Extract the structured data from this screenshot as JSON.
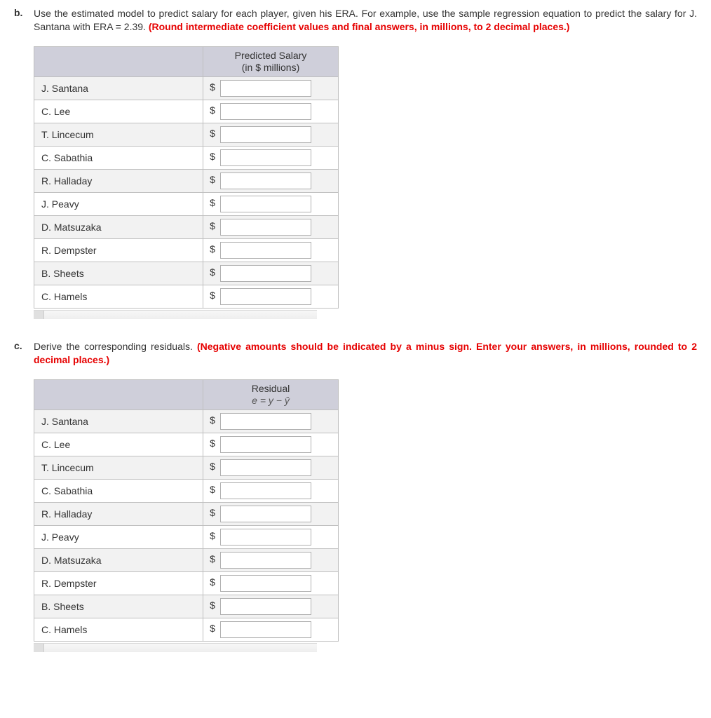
{
  "sections": {
    "b": {
      "letter": "b.",
      "text_plain": "Use the estimated model to predict salary for each player, given his ERA. For example, use the sample regression equation to predict the salary for J. Santana with ERA = 2.39. ",
      "text_red": "(Round intermediate coefficient values and final answers, in millions, to 2 decimal places.)",
      "header_line1": "Predicted Salary",
      "header_line2": "(in $ millions)"
    },
    "c": {
      "letter": "c.",
      "text_plain": "Derive the corresponding residuals. ",
      "text_red": "(Negative amounts should be indicated by a minus sign. Enter your answers, in millions, rounded to 2 decimal places.)",
      "header_line1": "Residual",
      "header_line2_html": "e = y − ŷ"
    }
  },
  "players": [
    "J. Santana",
    "C. Lee",
    "T. Lincecum",
    "C. Sabathia",
    "R. Halladay",
    "J. Peavy",
    "D. Matsuzaka",
    "R. Dempster",
    "B. Sheets",
    "C. Hamels"
  ],
  "currency_symbol": "$",
  "colors": {
    "header_bg": "#cfcfda",
    "row_odd": "#f2f2f2",
    "row_even": "#ffffff",
    "border": "#bfbfbf",
    "red_text": "#e60000",
    "body_text": "#333333"
  }
}
